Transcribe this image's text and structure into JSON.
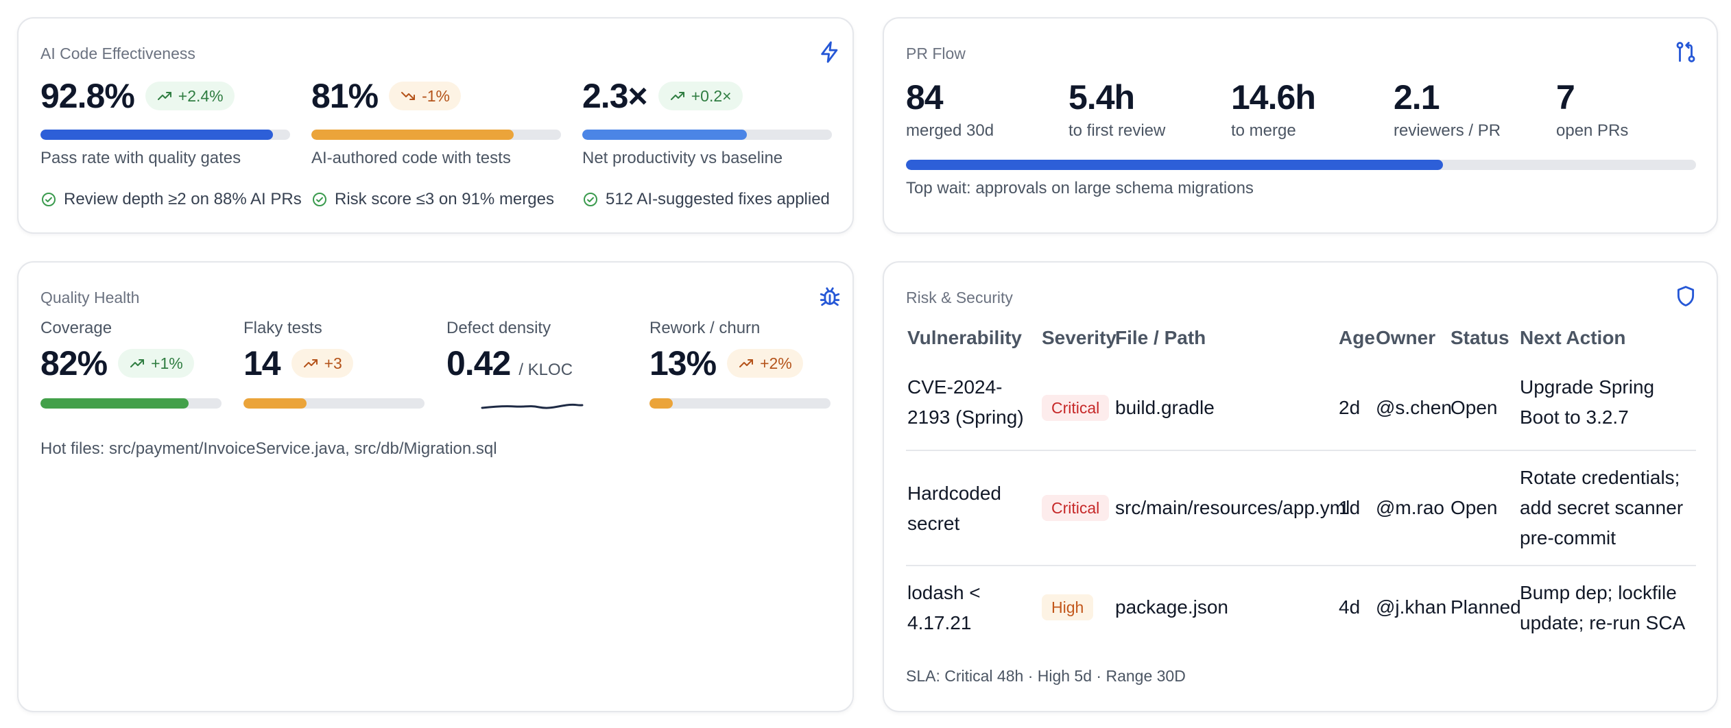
{
  "ai_effectiveness": {
    "title": "AI Code Effectiveness",
    "metrics": [
      {
        "value": "92.8%",
        "delta": "+2.4%",
        "trend": "up",
        "progress": 0.93,
        "color": "#2d5fd8",
        "label": "Pass rate with quality gates",
        "check": "Review depth ≥2 on 88% AI PRs"
      },
      {
        "value": "81%",
        "delta": "-1%",
        "trend": "down",
        "progress": 0.81,
        "color": "#eba43a",
        "label": "AI-authored code with tests",
        "check": "Risk score ≤3 on 91% merges"
      },
      {
        "value": "2.3×",
        "delta": "+0.2×",
        "trend": "up",
        "progress": 0.66,
        "color": "#4b85e6",
        "label": "Net productivity vs baseline",
        "check": "512 AI-suggested fixes applied"
      }
    ]
  },
  "pr_flow": {
    "title": "PR Flow",
    "stats": [
      {
        "value": "84",
        "label": "merged 30d"
      },
      {
        "value": "5.4h",
        "label": "to first review"
      },
      {
        "value": "14.6h",
        "label": "to merge"
      },
      {
        "value": "2.1",
        "label": "reviewers / PR"
      },
      {
        "value": "7",
        "label": "open PRs"
      }
    ],
    "progress": 0.68,
    "progress_color": "#2d5fd8",
    "note": "Top wait: approvals on large schema migrations"
  },
  "quality_health": {
    "title": "Quality Health",
    "metrics": [
      {
        "label": "Coverage",
        "value": "82%",
        "delta": "+1%",
        "trend": "up",
        "progress": 0.82,
        "color": "#43a04a"
      },
      {
        "label": "Flaky tests",
        "value": "14",
        "delta": "+3",
        "trend": "warn",
        "progress": 0.35,
        "color": "#eba43a"
      },
      {
        "label": "Defect density",
        "value": "0.42",
        "unit": "/ KLOC"
      },
      {
        "label": "Rework / churn",
        "value": "13%",
        "delta": "+2%",
        "trend": "warn",
        "progress": 0.13,
        "color": "#eba43a"
      }
    ],
    "hot_files": "Hot files: src/payment/InvoiceService.java, src/db/Migration.sql"
  },
  "risk_security": {
    "title": "Risk & Security",
    "columns": [
      "Vulnerability",
      "Severity",
      "File / Path",
      "Age",
      "Owner",
      "Status",
      "Next Action"
    ],
    "rows": [
      {
        "vuln": "CVE-2024-2193 (Spring)",
        "severity": "Critical",
        "sev_class": "critical",
        "file": "build.gradle",
        "age": "2d",
        "owner": "@s.chen",
        "status": "Open",
        "action": "Upgrade Spring Boot to 3.2.7"
      },
      {
        "vuln": "Hardcoded secret",
        "severity": "Critical",
        "sev_class": "critical",
        "file": "src/main/resources/app.yml",
        "age": "1d",
        "owner": "@m.rao",
        "status": "Open",
        "action": "Rotate credentials; add secret scanner pre-commit"
      },
      {
        "vuln": "lodash < 4.17.21",
        "severity": "High",
        "sev_class": "high",
        "file": "package.json",
        "age": "4d",
        "owner": "@j.khan",
        "status": "Planned",
        "action": "Bump dep; lockfile update; re-run SCA"
      }
    ],
    "sla": "SLA: Critical 48h · High 5d · Range 30D"
  },
  "icons": {
    "ai": "lightning-icon",
    "pr": "git-pull-request-icon",
    "quality": "bug-icon",
    "risk": "shield-icon",
    "check": "check-circle-icon",
    "trend_up": "trending-up-icon",
    "trend_down": "trending-down-icon"
  }
}
